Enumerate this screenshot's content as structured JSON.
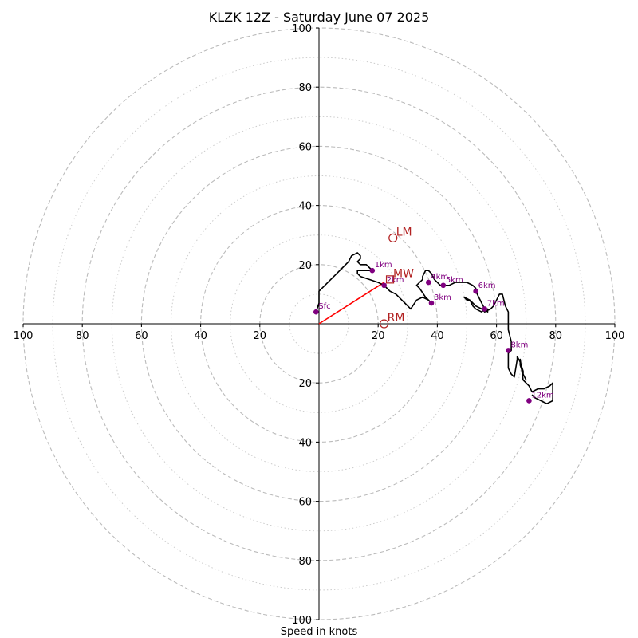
{
  "chart_data": {
    "type": "hodograph",
    "title": "KLZK 12Z - Saturday June 07 2025",
    "xlabel": "Speed in knots",
    "units": "knots",
    "range": [
      -100,
      100
    ],
    "x_ticks": [
      "100",
      "80",
      "60",
      "40",
      "20",
      "20",
      "40",
      "60",
      "80",
      "100"
    ],
    "y_ticks": [
      "100",
      "80",
      "60",
      "40",
      "20",
      "20",
      "40",
      "60",
      "80",
      "100"
    ],
    "rings_major": [
      20,
      40,
      60,
      80,
      100
    ],
    "rings_minor": [
      10,
      30,
      50,
      70,
      90
    ],
    "grid": true,
    "colors": {
      "trace": "#000000",
      "height_marker": "#800080",
      "motion": "#b22222",
      "shear_vector": "#ff0000",
      "grid": "#bbbbbb"
    },
    "trace": {
      "u": [
        -1,
        0,
        0,
        3,
        6,
        8,
        10,
        11,
        13,
        14,
        14,
        13,
        14,
        16,
        17,
        18,
        16,
        14,
        13,
        13,
        14,
        17,
        20,
        22,
        23,
        24,
        26,
        27,
        28,
        29,
        30,
        31,
        33,
        35,
        37,
        38,
        36,
        34,
        33,
        34,
        35,
        35,
        36,
        37,
        38,
        39,
        40,
        41,
        42,
        44,
        46,
        48,
        50,
        52,
        53,
        53,
        54,
        55,
        56,
        57,
        57,
        56,
        55,
        53,
        52,
        51,
        49,
        50,
        51,
        52,
        53,
        55,
        56,
        58,
        59,
        60,
        61,
        62,
        63,
        64,
        64,
        64,
        64,
        65,
        65,
        64,
        64,
        65,
        66,
        67,
        67,
        68,
        69,
        69,
        70,
        69,
        68,
        68,
        69,
        70,
        71,
        72,
        74,
        76,
        78,
        79,
        79,
        77,
        75,
        73,
        72
      ],
      "v": [
        4,
        7,
        11,
        14,
        17,
        19,
        21,
        23,
        24,
        23,
        22,
        21,
        20,
        20,
        19,
        18,
        18,
        18,
        18,
        17,
        16,
        15,
        14,
        13,
        12,
        11,
        10,
        9,
        8,
        7,
        6,
        5,
        8,
        9,
        8,
        7,
        9,
        12,
        13,
        14,
        15,
        16,
        18,
        18,
        17,
        15,
        14,
        13,
        13,
        13,
        14,
        14,
        14,
        13,
        12,
        11,
        9,
        7,
        5,
        5,
        4,
        5,
        4,
        5,
        6,
        8,
        9,
        8,
        8,
        7,
        6,
        5,
        4,
        5,
        6,
        8,
        10,
        10,
        6,
        4,
        2,
        0,
        -2,
        -6,
        -9,
        -10,
        -15,
        -17,
        -18,
        -12,
        -11,
        -13,
        -16,
        -17,
        -19,
        -17,
        -14,
        -12,
        -19,
        -20,
        -21,
        -23,
        -22,
        -22,
        -21,
        -20,
        -26,
        -27,
        -26,
        -25,
        -24
      ]
    },
    "height_markers": [
      {
        "label": "Sfc",
        "u": -1,
        "v": 4
      },
      {
        "label": "1km",
        "u": 18,
        "v": 18
      },
      {
        "label": "2km",
        "u": 22,
        "v": 13
      },
      {
        "label": "3km",
        "u": 38,
        "v": 7
      },
      {
        "label": "4km",
        "u": 37,
        "v": 14
      },
      {
        "label": "5km",
        "u": 42,
        "v": 13
      },
      {
        "label": "6km",
        "u": 53,
        "v": 11
      },
      {
        "label": "7km",
        "u": 56,
        "v": 5
      },
      {
        "label": "8km",
        "u": 64,
        "v": -9
      },
      {
        "label": "12km",
        "u": 71,
        "v": -26
      }
    ],
    "motions": [
      {
        "label": "LM",
        "u": 25,
        "v": 29,
        "shape": "circle"
      },
      {
        "label": "RM",
        "u": 22,
        "v": 0,
        "shape": "circle"
      },
      {
        "label": "MW",
        "u": 24,
        "v": 15,
        "shape": "square"
      }
    ],
    "shear_vector": {
      "from": [
        0,
        0
      ],
      "to": [
        22,
        14
      ]
    }
  }
}
